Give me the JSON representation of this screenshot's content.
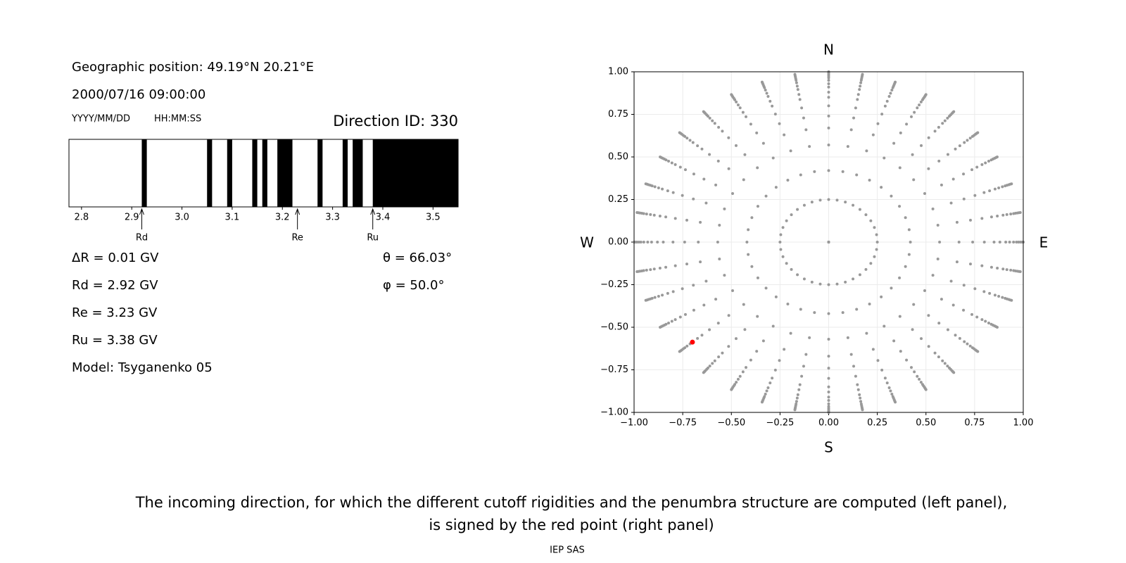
{
  "chart_data": [
    {
      "type": "penumbra",
      "header_lines": [
        "Geographic position: 49.19°N 20.21°E",
        "2000/07/16 09:00:00"
      ],
      "format_labels": [
        "YYYY/MM/DD",
        "HH:MM:SS"
      ],
      "title": "Direction ID: 330",
      "xlim": [
        2.775,
        3.55
      ],
      "xticks": [
        2.8,
        2.9,
        {
          "value": 3,
          "label": "3.0"
        },
        3.1,
        3.2,
        3.3,
        3.4,
        3.5
      ],
      "color": "#000000",
      "black_intervals": [
        [
          2.92,
          2.93
        ],
        [
          3.05,
          3.06
        ],
        [
          3.09,
          3.1
        ],
        [
          3.14,
          3.15
        ],
        [
          3.16,
          3.17
        ],
        [
          3.19,
          3.22
        ],
        [
          3.27,
          3.28
        ],
        [
          3.32,
          3.33
        ],
        [
          3.34,
          3.36
        ],
        [
          3.38,
          3.55
        ]
      ],
      "markers": [
        {
          "name": "Rd",
          "value": 2.92
        },
        {
          "name": "Re",
          "value": 3.23
        },
        {
          "name": "Ru",
          "value": 3.38
        }
      ],
      "notes_left": [
        "ΔR = 0.01 GV",
        "Rd = 2.92 GV",
        "Re = 3.23 GV",
        "Ru = 3.38 GV",
        "Model: Tsyganenko 05"
      ],
      "notes_right": [
        "θ = 66.03°",
        "φ = 50.0°"
      ]
    },
    {
      "type": "polar-scatter",
      "xlim": [
        -1,
        1
      ],
      "ylim": [
        -1,
        1
      ],
      "xticks": [
        {
          "value": -1,
          "label": "−1.00"
        },
        {
          "value": -0.75,
          "label": "−0.75"
        },
        {
          "value": -0.5,
          "label": "−0.50"
        },
        {
          "value": -0.25,
          "label": "−0.25"
        },
        {
          "value": 0,
          "label": "0.00"
        },
        {
          "value": 0.25,
          "label": "0.25"
        },
        {
          "value": 0.5,
          "label": "0.50"
        },
        {
          "value": 0.75,
          "label": "0.75"
        },
        {
          "value": 1,
          "label": "1.00"
        }
      ],
      "yticks": [
        {
          "value": -1,
          "label": "−1.00"
        },
        {
          "value": -0.75,
          "label": "−0.75"
        },
        {
          "value": -0.5,
          "label": "−0.50"
        },
        {
          "value": -0.25,
          "label": "−0.25"
        },
        {
          "value": 0,
          "label": "0.00"
        },
        {
          "value": 0.25,
          "label": "0.25"
        },
        {
          "value": 0.5,
          "label": "0.50"
        },
        {
          "value": 0.75,
          "label": "0.75"
        },
        {
          "value": 1,
          "label": "1.00"
        }
      ],
      "grid": true,
      "color": "#999999",
      "azimuths": [
        0,
        10,
        20,
        30,
        40,
        50,
        60,
        70,
        80,
        90,
        100,
        110,
        120,
        130,
        140,
        150,
        160,
        170,
        180,
        190,
        200,
        210,
        220,
        230,
        240,
        250,
        260,
        270,
        280,
        290,
        300,
        310,
        320,
        330,
        340,
        350
      ],
      "radii": [
        0,
        0.25,
        0.42,
        0.57,
        0.67,
        0.74,
        0.8,
        0.85,
        0.88,
        0.91,
        0.93,
        0.95,
        0.965,
        0.975,
        0.985,
        0.993,
        1
      ],
      "highlight": {
        "r": 0.914,
        "azimuth": 50,
        "color": "#ff0000"
      },
      "compass": {
        "N": "N",
        "S": "S",
        "E": "E",
        "W": "W"
      }
    }
  ],
  "caption": [
    "The incoming direction, for which the different cutoff rigidities and the penumbra structure are computed (left panel),",
    "is signed by the red point (right panel)"
  ],
  "footer": "IEP SAS"
}
